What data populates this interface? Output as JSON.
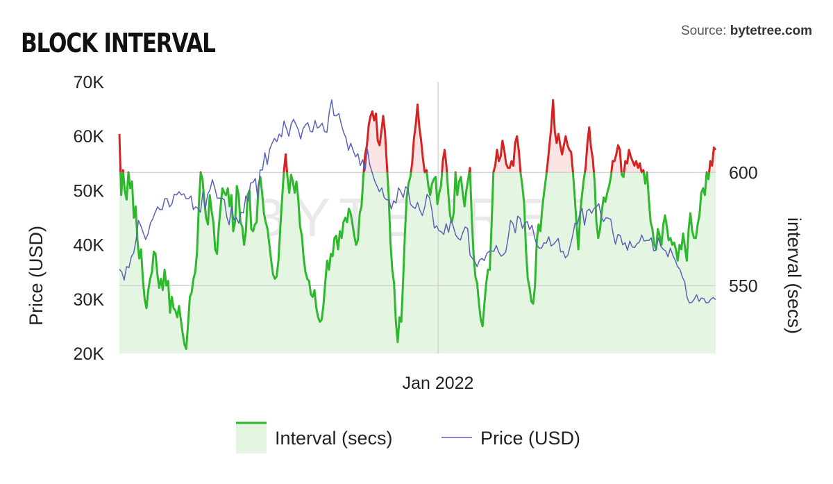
{
  "header": {
    "title": "BLOCK INTERVAL",
    "source_label": "Source:",
    "source_name": "bytetree.com"
  },
  "watermark": "BYTETREE",
  "chart_data": {
    "type": "line",
    "title": "BLOCK INTERVAL",
    "xlabel": "",
    "x_tick_labels": [
      "Jan 2022"
    ],
    "left_axis": {
      "label": "Price (USD)",
      "ticks": [
        "20K",
        "30K",
        "40K",
        "50K",
        "60K",
        "70K"
      ],
      "range": [
        20000,
        70000
      ]
    },
    "right_axis": {
      "label": "interval (secs)",
      "ticks": [
        "550",
        "600"
      ],
      "range": [
        520,
        640
      ],
      "threshold": 600
    },
    "colors": {
      "interval": "#2db82d",
      "interval_above": "#d32323",
      "interval_fill": "#e4f6e2",
      "interval_fill_above": "#fae3e3",
      "price": "#5a62b8",
      "grid": "#cccccc"
    },
    "legend": {
      "placement": "bottom",
      "items": [
        "Interval (secs)",
        "Price (USD)"
      ]
    },
    "grid": true,
    "series": [
      {
        "name": "Interval (secs)",
        "axis": "right",
        "values": [
          617,
          590,
          601,
          592,
          588,
          600,
          593,
          596,
          580,
          585,
          570,
          562,
          566,
          553,
          544,
          540,
          548,
          553,
          556,
          565,
          564,
          555,
          549,
          553,
          548,
          557,
          550,
          552,
          538,
          545,
          540,
          539,
          536,
          541,
          535,
          529,
          524,
          522,
          533,
          545,
          547,
          553,
          556,
          565,
          586,
          600,
          597,
          588,
          580,
          577,
          590,
          583,
          578,
          566,
          564,
          576,
          585,
          593,
          591,
          590,
          593,
          585,
          590,
          574,
          578,
          594,
          590,
          578,
          576,
          568,
          574,
          590,
          592,
          575,
          574,
          577,
          578,
          594,
          598,
          591,
          582,
          578,
          575,
          568,
          561,
          555,
          553,
          554,
          561,
          575,
          588,
          600,
          608,
          598,
          591,
          599,
          596,
          591,
          596,
          588,
          576,
          572,
          562,
          556,
          553,
          552,
          546,
          545,
          548,
          540,
          536,
          534,
          535,
          542,
          552,
          561,
          557,
          564,
          563,
          571,
          572,
          566,
          574,
          571,
          578,
          580,
          578,
          584,
          582,
          577,
          572,
          568,
          570,
          582,
          585,
          598,
          608,
          612,
          621,
          625,
          627,
          623,
          626,
          614,
          612,
          618,
          625,
          618,
          604,
          590,
          569,
          557,
          551,
          534,
          525,
          536,
          534,
          552,
          573,
          589,
          595,
          598,
          604,
          615,
          621,
          630,
          620,
          614,
          606,
          600,
          601,
          594,
          590,
          595,
          597,
          598,
          586,
          591,
          594,
          605,
          610,
          603,
          591,
          581,
          578,
          582,
          600,
          590,
          596,
          598,
          591,
          585,
          592,
          597,
          602,
          580,
          564,
          554,
          551,
          542,
          535,
          532,
          542,
          551,
          557,
          557,
          577,
          600,
          603,
          610,
          605,
          607,
          614,
          610,
          604,
          602,
          602,
          605,
          603,
          613,
          616,
          610,
          600,
          594,
          586,
          566,
          553,
          549,
          543,
          542,
          550,
          570,
          577,
          574,
          584,
          591,
          597,
          604,
          612,
          620,
          632,
          618,
          613,
          617,
          612,
          608,
          612,
          616,
          612,
          610,
          609,
          600,
          589,
          577,
          566,
          582,
          590,
          597,
          602,
          613,
          620,
          611,
          606,
          596,
          578,
          571,
          575,
          583,
          589,
          587,
          591,
          594,
          598,
          605,
          605,
          608,
          612,
          610,
          599,
          598,
          605,
          604,
          610,
          607,
          605,
          603,
          605,
          602,
          604,
          600,
          601,
          595,
          600,
          588,
          578,
          575,
          568,
          566,
          575,
          572,
          568,
          577,
          581,
          576,
          570,
          571,
          568,
          569,
          566,
          561,
          568,
          566,
          573,
          567,
          561,
          575,
          582,
          574,
          571,
          571,
          577,
          581,
          591,
          593,
          590,
          600,
          597,
          605,
          603,
          611,
          610
        ],
        "notes": "approximate; values above 600 secs drawn in red"
      },
      {
        "name": "Price (USD)",
        "axis": "left",
        "values": [
          35500,
          35000,
          33500,
          36000,
          35800,
          37800,
          38500,
          41000,
          44500,
          43500,
          42200,
          41000,
          42000,
          44000,
          44800,
          46000,
          47000,
          46500,
          46500,
          48500,
          48500,
          47000,
          47500,
          49300,
          49200,
          49800,
          49200,
          49400,
          48500,
          48500,
          49000,
          46500,
          47000,
          46700,
          46000,
          49700,
          46500,
          49300,
          50200,
          52000,
          50500,
          48600,
          48600,
          48600,
          48300,
          45200,
          43700,
          47000,
          44600,
          45000,
          44000,
          46000,
          45900,
          49000,
          48000,
          51400,
          51500,
          52200,
          48500,
          53800,
          53800,
          57000,
          54800,
          57600,
          58700,
          59600,
          59000,
          60400,
          59900,
          62800,
          61500,
          60000,
          62200,
          63100,
          62200,
          61200,
          59500,
          61400,
          62100,
          62500,
          60900,
          60800,
          62900,
          61500,
          61800,
          62400,
          60900,
          60700,
          64500,
          66700,
          63800,
          63800,
          64200,
          62300,
          60700,
          59700,
          57400,
          58700,
          57400,
          56200,
          56800,
          54600,
          55700,
          53600,
          57600,
          54700,
          53300,
          51800,
          50800,
          49800,
          50500,
          48700,
          48300,
          48300,
          46600,
          48100,
          47700,
          50500,
          49800,
          48700,
          50700,
          50300,
          47500,
          47000,
          46700,
          47800,
          46400,
          45400,
          46900,
          49300,
          48700,
          46500,
          43100,
          43500,
          42600,
          42400,
          41900,
          43900,
          42300,
          44600,
          43400,
          41800,
          41200,
          40900,
          42300,
          43300,
          43000,
          38100,
          37500,
          36900,
          36000,
          37200,
          37500,
          37100,
          38400,
          38800,
          38900,
          38800,
          39900,
          38700,
          37900,
          38200,
          38700,
          41400,
          44500,
          43900,
          42200,
          45300,
          44900,
          43000,
          44000,
          44300,
          42800,
          43600,
          41500,
          40000,
          39400,
          39400,
          40400,
          40300,
          41500,
          39800,
          40100,
          40600,
          41200,
          38700,
          38800,
          37600,
          38100,
          39800,
          41600,
          44000,
          43800,
          45600,
          46700,
          43600,
          46200,
          46600,
          45800,
          46700,
          47000,
          47600,
          45200,
          44300,
          45000,
          44900,
          44700,
          42000,
          40100,
          41900,
          41700,
          40000,
          40400,
          39000,
          40700,
          39600,
          39500,
          40200,
          40500,
          41800,
          40700,
          40800,
          40800,
          41300,
          38900,
          39000,
          41300,
          39700,
          39200,
          38900,
          37800,
          39400,
          38100,
          37200,
          36000,
          35500,
          34100,
          33200,
          30300,
          29300,
          29400,
          30000,
          30800,
          29600,
          30200,
          30100,
          29300,
          29400,
          30000,
          30300,
          29900
        ],
        "notes": "approximate"
      }
    ]
  }
}
